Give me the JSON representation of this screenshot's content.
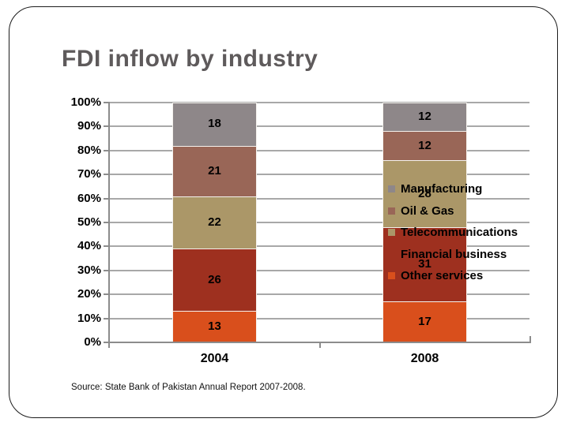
{
  "slide": {
    "title": "FDI inflow by industry",
    "source": "Source: State Bank of Pakistan Annual Report 2007-2008."
  },
  "chart_data": {
    "type": "bar",
    "stacked": true,
    "title": "",
    "xlabel": "",
    "ylabel": "",
    "categories": [
      "2004",
      "2008"
    ],
    "series": [
      {
        "name": "Manufacturing",
        "color": "#8e8789",
        "values": [
          18,
          12
        ]
      },
      {
        "name": "Oil & Gas",
        "color": "#996657",
        "values": [
          21,
          12
        ]
      },
      {
        "name": "Telecommunications",
        "color": "#ab9768",
        "values": [
          22,
          28
        ]
      },
      {
        "name": "Financial business",
        "color": "#9e301f",
        "values": [
          26,
          31
        ]
      },
      {
        "name": "Other services",
        "color": "#d94f1c",
        "values": [
          13,
          17
        ]
      }
    ],
    "stack_order_bottom_to_top": [
      "Other services",
      "Financial business",
      "Telecommunications",
      "Oil & Gas",
      "Manufacturing"
    ],
    "data_labels_visible": true,
    "ylim": [
      0,
      100
    ],
    "ytick_labels": [
      "0%",
      "10%",
      "20%",
      "30%",
      "40%",
      "50%",
      "60%",
      "70%",
      "80%",
      "90%",
      "100%"
    ],
    "grid": true,
    "gridline_color": "#a8a8a8",
    "legend_position": "overlapping-right",
    "legend_entries": [
      "Manufacturing",
      "Oil & Gas",
      "Telecommunications",
      "Financial business",
      "Other services"
    ]
  }
}
